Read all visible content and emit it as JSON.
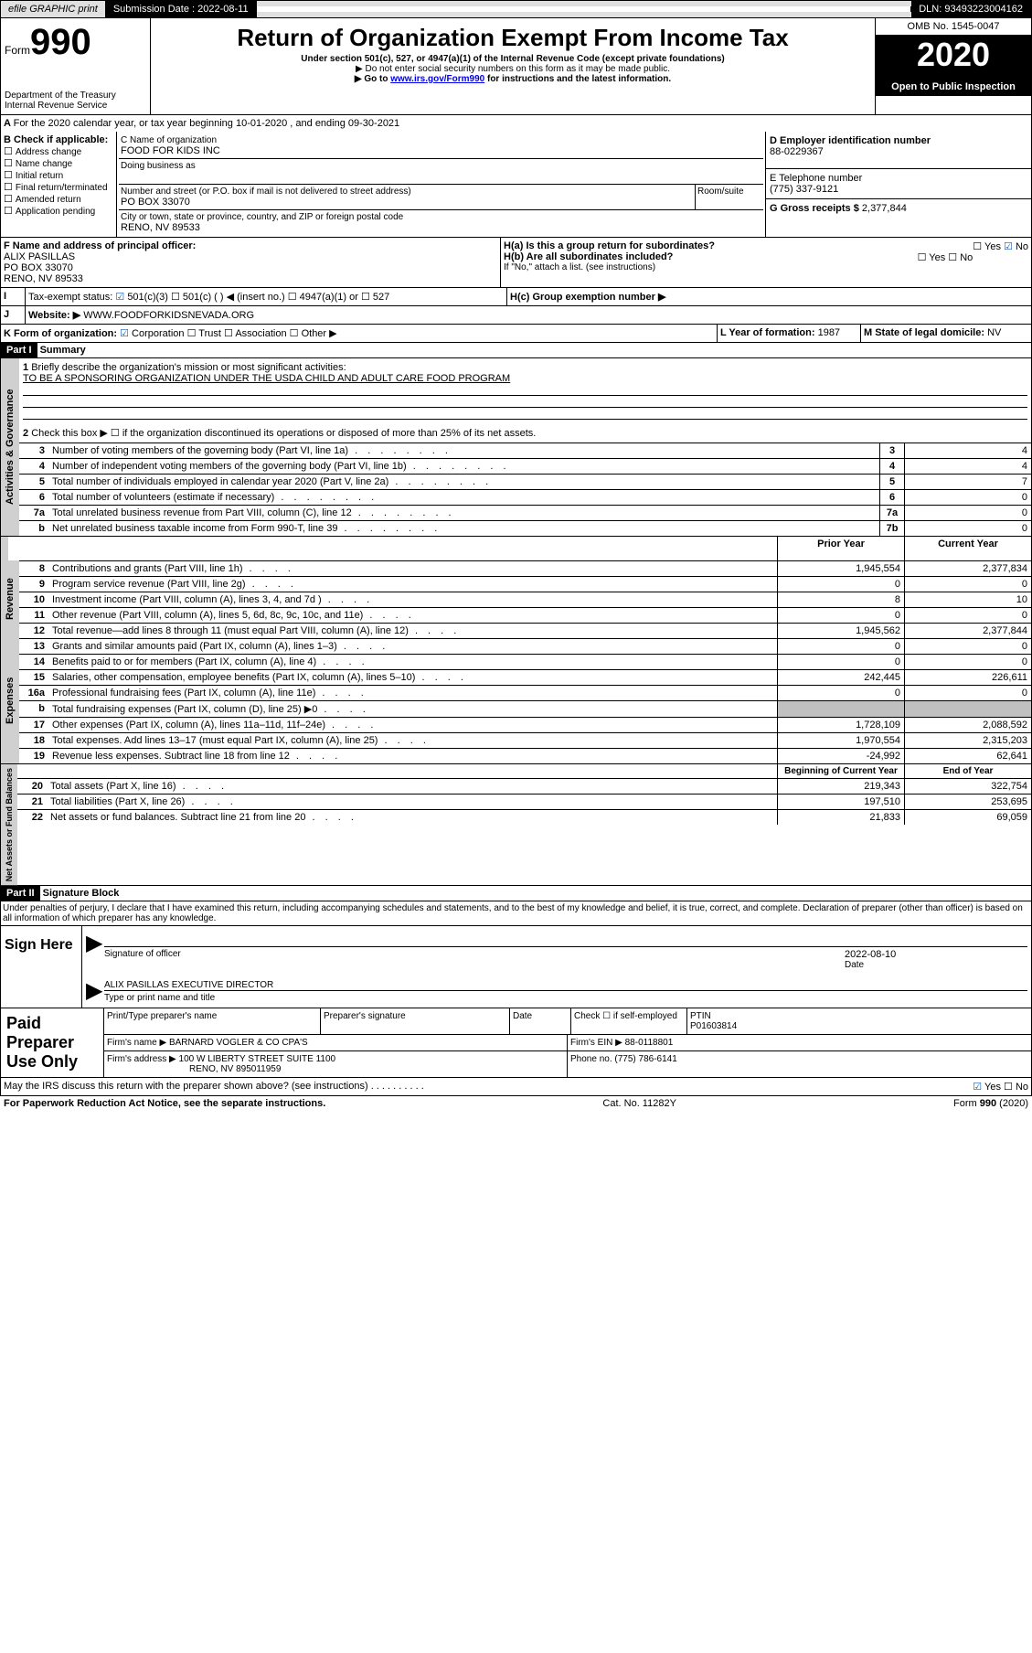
{
  "top": {
    "efile": "efile GRAPHIC print",
    "subdate_lbl": "Submission Date :",
    "subdate": "2022-08-11",
    "dln_lbl": "DLN:",
    "dln": "93493223004162"
  },
  "head": {
    "form": "Form",
    "num": "990",
    "dept": "Department of the Treasury",
    "irs": "Internal Revenue Service",
    "title": "Return of Organization Exempt From Income Tax",
    "sub1": "Under section 501(c), 527, or 4947(a)(1) of the Internal Revenue Code (except private foundations)",
    "sub2": "Do not enter social security numbers on this form as it may be made public.",
    "sub3a": "Go to ",
    "sub3b": "www.irs.gov/Form990",
    "sub3c": " for instructions and the latest information.",
    "omb": "OMB No. 1545-0047",
    "year": "2020",
    "open": "Open to Public Inspection"
  },
  "a": {
    "line": "For the 2020 calendar year, or tax year beginning 10-01-2020   , and ending 09-30-2021"
  },
  "b": {
    "hdr": "B Check if applicable:",
    "items": [
      "Address change",
      "Name change",
      "Initial return",
      "Final return/terminated",
      "Amended return",
      "Application pending"
    ]
  },
  "c": {
    "name_lbl": "C Name of organization",
    "name": "FOOD FOR KIDS INC",
    "dba": "Doing business as",
    "street_lbl": "Number and street (or P.O. box if mail is not delivered to street address)",
    "room": "Room/suite",
    "street": "PO BOX 33070",
    "city_lbl": "City or town, state or province, country, and ZIP or foreign postal code",
    "city": "RENO, NV  89533"
  },
  "d": {
    "lbl": "D Employer identification number",
    "val": "88-0229367"
  },
  "e": {
    "lbl": "E Telephone number",
    "val": "(775) 337-9121"
  },
  "g": {
    "lbl": "G Gross receipts $",
    "val": "2,377,844"
  },
  "f": {
    "lbl": "F  Name and address of principal officer:",
    "name": "ALIX PASILLAS",
    "addr1": "PO BOX 33070",
    "addr2": "RENO, NV  89533"
  },
  "h": {
    "a": "H(a)  Is this a group return for subordinates?",
    "b": "H(b)  Are all subordinates included?",
    "bnote": "If \"No,\" attach a list. (see instructions)",
    "c": "H(c)  Group exemption number ▶",
    "yes": "Yes",
    "no": "No"
  },
  "i": {
    "lbl": "Tax-exempt status:",
    "a": "501(c)(3)",
    "b": "501(c) (  ) ◀ (insert no.)",
    "c": "4947(a)(1) or",
    "d": "527"
  },
  "j": {
    "lbl": "Website: ▶",
    "val": "WWW.FOODFORKIDSNEVADA.ORG"
  },
  "k": {
    "lbl": "K Form of organization:",
    "a": "Corporation",
    "b": "Trust",
    "c": "Association",
    "d": "Other ▶"
  },
  "l": {
    "lbl": "L Year of formation:",
    "val": "1987"
  },
  "m": {
    "lbl": "M State of legal domicile:",
    "val": "NV"
  },
  "part1": {
    "hdr": "Part I",
    "title": "Summary",
    "q1": "Briefly describe the organization's mission or most significant activities:",
    "q1a": "TO BE A SPONSORING ORGANIZATION UNDER THE USDA CHILD AND ADULT CARE FOOD PROGRAM",
    "q2": "Check this box ▶ ☐  if the organization discontinued its operations or disposed of more than 25% of its net assets.",
    "lines": [
      {
        "n": "3",
        "t": "Number of voting members of the governing body (Part VI, line 1a)",
        "box": "3",
        "v": "4"
      },
      {
        "n": "4",
        "t": "Number of independent voting members of the governing body (Part VI, line 1b)",
        "box": "4",
        "v": "4"
      },
      {
        "n": "5",
        "t": "Total number of individuals employed in calendar year 2020 (Part V, line 2a)",
        "box": "5",
        "v": "7"
      },
      {
        "n": "6",
        "t": "Total number of volunteers (estimate if necessary)",
        "box": "6",
        "v": "0"
      },
      {
        "n": "7a",
        "t": "Total unrelated business revenue from Part VIII, column (C), line 12",
        "box": "7a",
        "v": "0"
      },
      {
        "n": "b",
        "t": "Net unrelated business taxable income from Form 990-T, line 39",
        "box": "7b",
        "v": "0"
      }
    ],
    "cols": {
      "prior": "Prior Year",
      "curr": "Current Year"
    },
    "rev": [
      {
        "n": "8",
        "t": "Contributions and grants (Part VIII, line 1h)",
        "p": "1,945,554",
        "c": "2,377,834"
      },
      {
        "n": "9",
        "t": "Program service revenue (Part VIII, line 2g)",
        "p": "0",
        "c": "0"
      },
      {
        "n": "10",
        "t": "Investment income (Part VIII, column (A), lines 3, 4, and 7d )",
        "p": "8",
        "c": "10"
      },
      {
        "n": "11",
        "t": "Other revenue (Part VIII, column (A), lines 5, 6d, 8c, 9c, 10c, and 11e)",
        "p": "0",
        "c": "0"
      },
      {
        "n": "12",
        "t": "Total revenue—add lines 8 through 11 (must equal Part VIII, column (A), line 12)",
        "p": "1,945,562",
        "c": "2,377,844"
      }
    ],
    "exp": [
      {
        "n": "13",
        "t": "Grants and similar amounts paid (Part IX, column (A), lines 1–3)",
        "p": "0",
        "c": "0"
      },
      {
        "n": "14",
        "t": "Benefits paid to or for members (Part IX, column (A), line 4)",
        "p": "0",
        "c": "0"
      },
      {
        "n": "15",
        "t": "Salaries, other compensation, employee benefits (Part IX, column (A), lines 5–10)",
        "p": "242,445",
        "c": "226,611"
      },
      {
        "n": "16a",
        "t": "Professional fundraising fees (Part IX, column (A), line 11e)",
        "p": "0",
        "c": "0"
      },
      {
        "n": "b",
        "t": "Total fundraising expenses (Part IX, column (D), line 25) ▶0",
        "p": "",
        "c": "",
        "shade": true
      },
      {
        "n": "17",
        "t": "Other expenses (Part IX, column (A), lines 11a–11d, 11f–24e)",
        "p": "1,728,109",
        "c": "2,088,592"
      },
      {
        "n": "18",
        "t": "Total expenses. Add lines 13–17 (must equal Part IX, column (A), line 25)",
        "p": "1,970,554",
        "c": "2,315,203"
      },
      {
        "n": "19",
        "t": "Revenue less expenses. Subtract line 18 from line 12",
        "p": "-24,992",
        "c": "62,641"
      }
    ],
    "cols2": {
      "prior": "Beginning of Current Year",
      "curr": "End of Year"
    },
    "net": [
      {
        "n": "20",
        "t": "Total assets (Part X, line 16)",
        "p": "219,343",
        "c": "322,754"
      },
      {
        "n": "21",
        "t": "Total liabilities (Part X, line 26)",
        "p": "197,510",
        "c": "253,695"
      },
      {
        "n": "22",
        "t": "Net assets or fund balances. Subtract line 21 from line 20",
        "p": "21,833",
        "c": "69,059"
      }
    ],
    "sides": {
      "ag": "Activities & Governance",
      "rev": "Revenue",
      "exp": "Expenses",
      "net": "Net Assets or Fund Balances"
    }
  },
  "part2": {
    "hdr": "Part II",
    "title": "Signature Block",
    "decl": "Under penalties of perjury, I declare that I have examined this return, including accompanying schedules and statements, and to the best of my knowledge and belief, it is true, correct, and complete. Declaration of preparer (other than officer) is based on all information of which preparer has any knowledge."
  },
  "sign": {
    "lbl": "Sign Here",
    "sig": "Signature of officer",
    "date_lbl": "Date",
    "date": "2022-08-10",
    "name": "ALIX PASILLAS EXECUTIVE DIRECTOR",
    "name_lbl": "Type or print name and title"
  },
  "prep": {
    "lbl": "Paid Preparer Use Only",
    "h1": "Print/Type preparer's name",
    "h2": "Preparer's signature",
    "h3": "Date",
    "chk": "Check ☐ if self-employed",
    "ptin_lbl": "PTIN",
    "ptin": "P01603814",
    "firm_lbl": "Firm's name    ▶",
    "firm": "BARNARD VOGLER & CO CPA'S",
    "ein_lbl": "Firm's EIN ▶",
    "ein": "88-0118801",
    "addr_lbl": "Firm's address ▶",
    "addr1": "100 W LIBERTY STREET SUITE 1100",
    "addr2": "RENO, NV  895011959",
    "phone_lbl": "Phone no.",
    "phone": "(775) 786-6141",
    "discuss": "May the IRS discuss this return with the preparer shown above? (see instructions)"
  },
  "foot": {
    "pra": "For Paperwork Reduction Act Notice, see the separate instructions.",
    "cat": "Cat. No. 11282Y",
    "form": "Form 990 (2020)"
  }
}
